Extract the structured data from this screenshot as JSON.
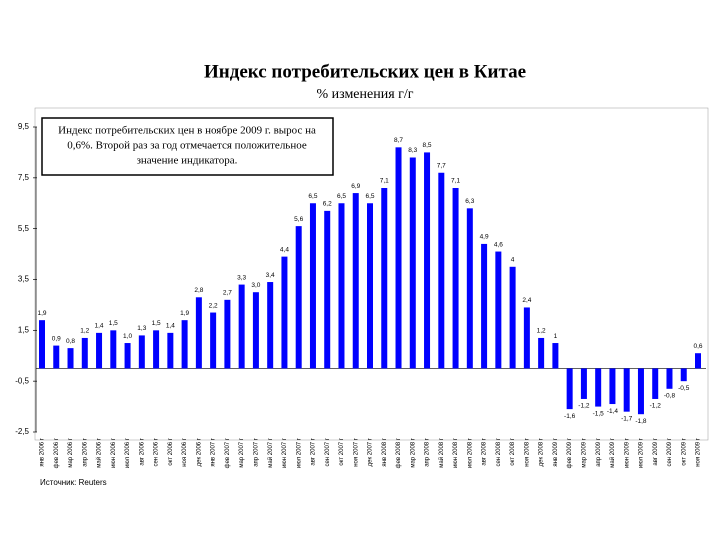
{
  "chart_data": {
    "type": "bar",
    "title": "Индекс потребительских цен в Китае",
    "subtitle": "% изменения г/г",
    "annotation": [
      "Индекс потребительских цен в ноябре 2009 г. вырос на",
      "0,6%. Второй раз за год отмечается положительное",
      "значение индикатора."
    ],
    "source": "Источник: Reuters",
    "color": "#0000ff",
    "categories": [
      "янв 2006 г",
      "фев 2006 г",
      "мар 2006 г",
      "апр 2006 г",
      "май 2006 г",
      "июн 2006 г",
      "июл 2006 г",
      "авг 2006 г",
      "сен 2006 г",
      "окт 2006 г",
      "ноя 2006 г",
      "дек 2006 г",
      "янв 2007 г",
      "фев 2007 г",
      "мар 2007 г",
      "апр 2007 г",
      "май 2007 г",
      "июн 2007 г",
      "июл 2007 г",
      "авг 2007 г",
      "сен 2007 г",
      "окт 2007 г",
      "ноя 2007 г",
      "дек 2007 г",
      "янв 2008 г",
      "фев 2008 г",
      "мар 2008 г",
      "апр 2008 г",
      "май 2008 г",
      "июн 2008 г",
      "июл 2008 г",
      "авг 2008 г",
      "сен 2008 г",
      "окт 2008 г",
      "ноя 2008 г",
      "дек 2008 г",
      "янв 2009 г",
      "фев 2009 г",
      "мар 2009 г",
      "апр 2009 г",
      "май 2009 г",
      "июн 2009 г",
      "июл 2009 г",
      "авг 2009 г",
      "сен 2009 г",
      "окт 2009 г",
      "ноя 2009 г"
    ],
    "values": [
      1.9,
      0.9,
      0.8,
      1.2,
      1.4,
      1.5,
      1.0,
      1.3,
      1.5,
      1.4,
      1.9,
      2.8,
      2.2,
      2.7,
      3.3,
      3.0,
      3.4,
      4.4,
      5.6,
      6.5,
      6.2,
      6.5,
      6.9,
      6.5,
      7.1,
      8.7,
      8.3,
      8.5,
      7.7,
      7.1,
      6.3,
      4.9,
      4.6,
      4,
      2.4,
      1.2,
      1,
      -1.6,
      -1.2,
      -1.5,
      -1.4,
      -1.7,
      -1.8,
      -1.2,
      -0.8,
      -0.5,
      0.6
    ],
    "value_labels": [
      "1,9",
      "0,9",
      "0,8",
      "1,2",
      "1,4",
      "1,5",
      "1,0",
      "1,3",
      "1,5",
      "1,4",
      "1,9",
      "2,8",
      "2,2",
      "2,7",
      "3,3",
      "3,0",
      "3,4",
      "4,4",
      "5,6",
      "6,5",
      "6,2",
      "6,5",
      "6,9",
      "6,5",
      "7,1",
      "8,7",
      "8,3",
      "8,5",
      "7,7",
      "7,1",
      "6,3",
      "4,9",
      "4,6",
      "4",
      "2,4",
      "1,2",
      "1",
      "-1,6",
      "-1,2",
      "-1,5",
      "-1,4",
      "-1,7",
      "-1,8",
      "-1,2",
      "-0,8",
      "-0,5",
      "0,6"
    ],
    "ylim": [
      -2.5,
      9.5
    ],
    "yticks": [
      {
        "value": 9.5,
        "label": "9,5"
      },
      {
        "value": 7.5,
        "label": "7,5"
      },
      {
        "value": 5.5,
        "label": "5,5"
      },
      {
        "value": 3.5,
        "label": "3,5"
      },
      {
        "value": 1.5,
        "label": "1,5"
      },
      {
        "value": -0.5,
        "label": "-0,5"
      },
      {
        "value": -2.5,
        "label": "-2,5"
      }
    ]
  }
}
